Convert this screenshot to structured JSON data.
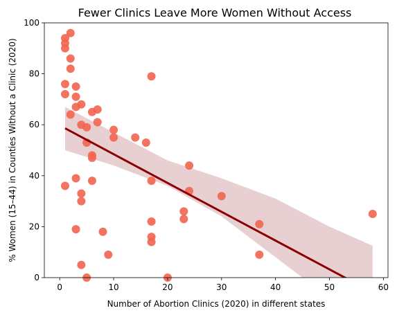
{
  "chart_data": {
    "type": "scatter",
    "title": "Fewer Clinics Leave More Women Without Access",
    "xlabel": "Number of Abortion Clinics (2020) in different states",
    "ylabel": "% Women (15–44) in Counties Without a Clinic (2020)",
    "xlim": [
      -2.85,
      60.85
    ],
    "ylim": [
      0,
      100
    ],
    "xticks": [
      0,
      10,
      20,
      30,
      40,
      50,
      60
    ],
    "yticks": [
      0,
      20,
      40,
      60,
      80,
      100
    ],
    "points": [
      {
        "x": 1,
        "y": 94
      },
      {
        "x": 1,
        "y": 92
      },
      {
        "x": 1,
        "y": 90
      },
      {
        "x": 2,
        "y": 96
      },
      {
        "x": 2,
        "y": 86
      },
      {
        "x": 2,
        "y": 82
      },
      {
        "x": 1,
        "y": 76
      },
      {
        "x": 1,
        "y": 72
      },
      {
        "x": 3,
        "y": 75
      },
      {
        "x": 3,
        "y": 71
      },
      {
        "x": 4,
        "y": 68
      },
      {
        "x": 3,
        "y": 67
      },
      {
        "x": 2,
        "y": 64
      },
      {
        "x": 6,
        "y": 65
      },
      {
        "x": 7,
        "y": 66
      },
      {
        "x": 7,
        "y": 61
      },
      {
        "x": 4,
        "y": 60
      },
      {
        "x": 5,
        "y": 59
      },
      {
        "x": 10,
        "y": 58
      },
      {
        "x": 10,
        "y": 55
      },
      {
        "x": 14,
        "y": 55
      },
      {
        "x": 16,
        "y": 53
      },
      {
        "x": 5,
        "y": 53
      },
      {
        "x": 6,
        "y": 48
      },
      {
        "x": 6,
        "y": 47
      },
      {
        "x": 17,
        "y": 79
      },
      {
        "x": 24,
        "y": 44
      },
      {
        "x": 3,
        "y": 39
      },
      {
        "x": 6,
        "y": 38
      },
      {
        "x": 17,
        "y": 38
      },
      {
        "x": 1,
        "y": 36
      },
      {
        "x": 24,
        "y": 34
      },
      {
        "x": 4,
        "y": 33
      },
      {
        "x": 30,
        "y": 32
      },
      {
        "x": 4,
        "y": 30
      },
      {
        "x": 23,
        "y": 26
      },
      {
        "x": 23,
        "y": 23
      },
      {
        "x": 17,
        "y": 22
      },
      {
        "x": 37,
        "y": 21
      },
      {
        "x": 3,
        "y": 19
      },
      {
        "x": 8,
        "y": 18
      },
      {
        "x": 17,
        "y": 16
      },
      {
        "x": 17,
        "y": 14
      },
      {
        "x": 9,
        "y": 9
      },
      {
        "x": 37,
        "y": 9
      },
      {
        "x": 4,
        "y": 5
      },
      {
        "x": 5,
        "y": 0
      },
      {
        "x": 20,
        "y": 0
      },
      {
        "x": 58,
        "y": 25
      }
    ],
    "regression": {
      "x": [
        1,
        58
      ],
      "y": [
        58.6,
        -5.8
      ]
    },
    "confidence_band": {
      "x": [
        1,
        10,
        20,
        30,
        40,
        50,
        58
      ],
      "lower": [
        50,
        44,
        36,
        24,
        8,
        -8,
        -20
      ],
      "upper": [
        67,
        57,
        46,
        39,
        31,
        20,
        12.5
      ]
    },
    "colors": {
      "points": "#f26450",
      "regression_line": "#8b0000",
      "confidence_band": "#e8d0d2"
    }
  }
}
